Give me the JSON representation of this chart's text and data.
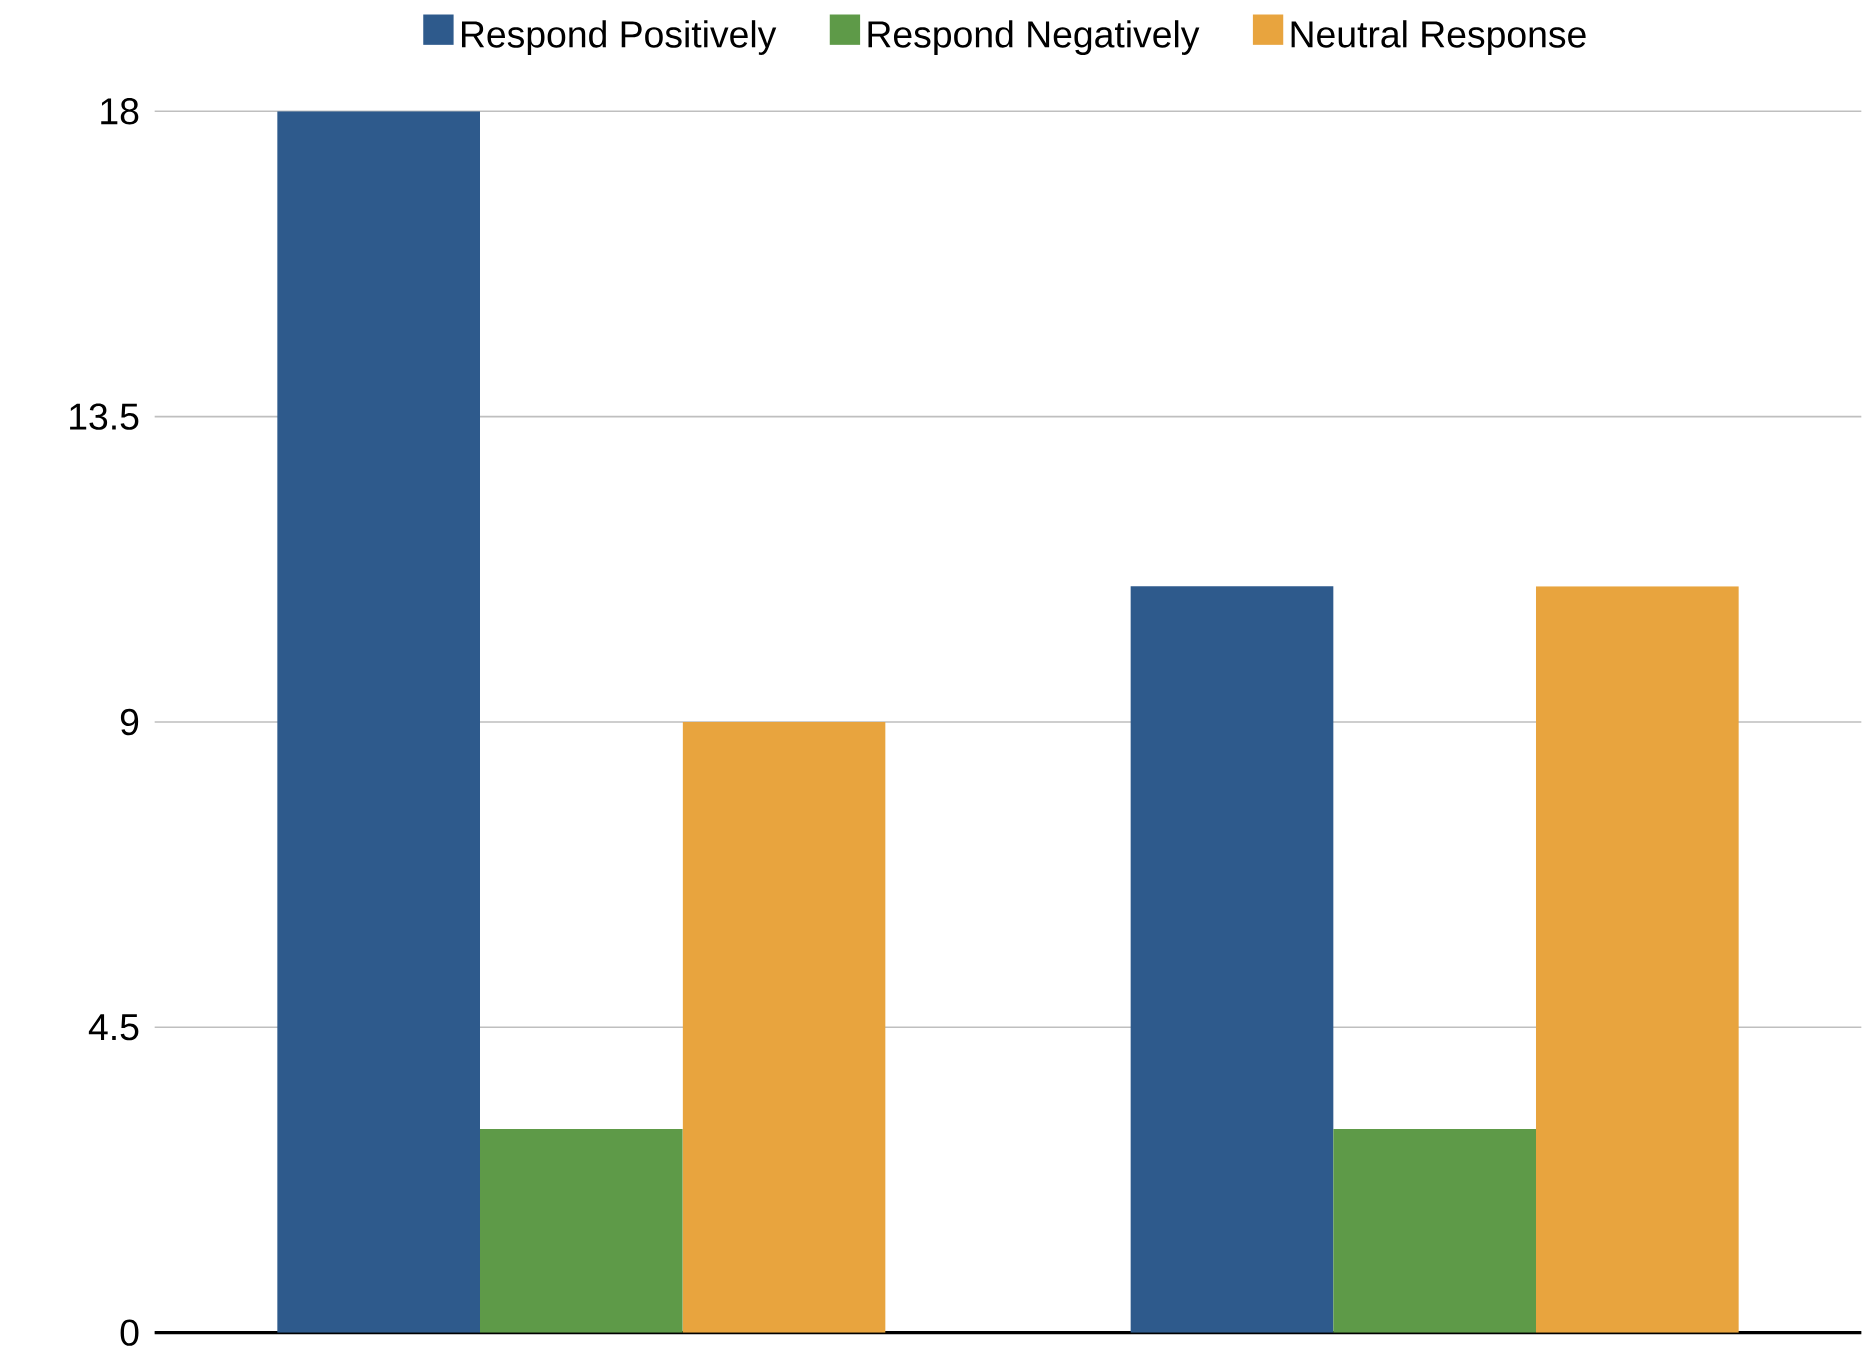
{
  "chart_data": {
    "type": "bar",
    "categories": [
      null,
      null
    ],
    "series": [
      {
        "name": "Respond Positively",
        "color": "#2e5a8c",
        "values": [
          18,
          11
        ]
      },
      {
        "name": "Respond Negatively",
        "color": "#5e9a48",
        "values": [
          3,
          3
        ]
      },
      {
        "name": "Neutral Response",
        "color": "#e8a43e",
        "values": [
          9,
          11
        ]
      }
    ],
    "ylim": [
      0,
      18
    ],
    "yticks": [
      0,
      4.5,
      9,
      13.5,
      18
    ],
    "grid": "y",
    "legend": "top",
    "tick_labels": "y"
  }
}
